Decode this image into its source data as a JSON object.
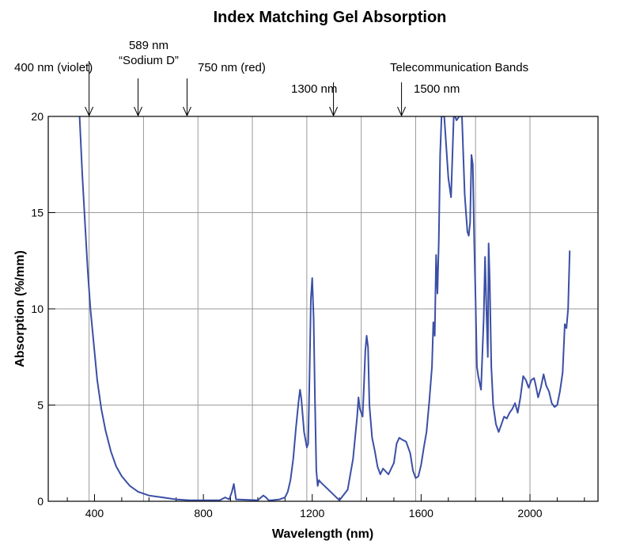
{
  "chart_data": {
    "type": "line",
    "title": "Index Matching Gel Absorption",
    "xlabel": "Wavelength (nm)",
    "ylabel": "Absorption (%/mm)",
    "xlim": [
      230,
      2250
    ],
    "ylim": [
      0,
      20
    ],
    "x_ticks": [
      400,
      800,
      1200,
      1600,
      2000
    ],
    "x_minor_ticks": [
      300,
      500,
      600,
      700,
      900,
      1000,
      1100,
      1300,
      1400,
      1500,
      1700,
      1800,
      1900,
      2100,
      2200
    ],
    "y_ticks": [
      0,
      5,
      10,
      15,
      20
    ],
    "x_grid": [
      380,
      580,
      780,
      980,
      1180,
      1380,
      1580,
      1800,
      2000
    ],
    "y_grid": [
      5,
      10,
      15
    ],
    "series": [
      {
        "name": "Index Matching Gel",
        "color": "#3b4fa5",
        "x": [
          345,
          355,
          365,
          375,
          385,
          395,
          410,
          425,
          440,
          460,
          480,
          500,
          530,
          560,
          600,
          650,
          700,
          750,
          860,
          880,
          895,
          905,
          912,
          920,
          1000,
          1020,
          1030,
          1040,
          1050,
          1080,
          1100,
          1110,
          1120,
          1130,
          1140,
          1150,
          1155,
          1160,
          1170,
          1180,
          1185,
          1190,
          1195,
          1200,
          1205,
          1210,
          1215,
          1220,
          1225,
          1230,
          1300,
          1330,
          1350,
          1365,
          1370,
          1375,
          1380,
          1385,
          1390,
          1395,
          1400,
          1405,
          1410,
          1420,
          1430,
          1440,
          1450,
          1460,
          1480,
          1500,
          1510,
          1520,
          1530,
          1545,
          1560,
          1570,
          1580,
          1590,
          1600,
          1610,
          1620,
          1630,
          1640,
          1645,
          1650,
          1655,
          1660,
          1665,
          1670,
          1675,
          1685,
          1700,
          1710,
          1720,
          1725,
          1730,
          1740,
          1750,
          1760,
          1765,
          1770,
          1775,
          1780,
          1785,
          1790,
          1795,
          1800,
          1805,
          1810,
          1820,
          1830,
          1835,
          1840,
          1845,
          1848,
          1852,
          1858,
          1865,
          1875,
          1885,
          1895,
          1905,
          1915,
          1925,
          1935,
          1945,
          1955,
          1965,
          1975,
          1985,
          1995,
          2005,
          2015,
          2020,
          2030,
          2040,
          2050,
          2060,
          2070,
          2080,
          2090,
          2100,
          2110,
          2115,
          2120,
          2128,
          2134,
          2140,
          2146
        ],
        "y": [
          20,
          17,
          14.5,
          12,
          10,
          8.5,
          6.3,
          4.8,
          3.7,
          2.6,
          1.8,
          1.3,
          0.8,
          0.5,
          0.3,
          0.2,
          0.1,
          0.05,
          0.05,
          0.2,
          0.1,
          0.5,
          0.9,
          0.1,
          0.05,
          0.3,
          0.2,
          0.05,
          0.05,
          0.1,
          0.2,
          0.5,
          1.1,
          2.2,
          3.8,
          5.2,
          5.8,
          5.3,
          3.6,
          2.8,
          3.0,
          6.5,
          10.5,
          11.6,
          9.5,
          5.2,
          1.6,
          0.8,
          1.1,
          1.0,
          0.05,
          0.6,
          2.2,
          4.4,
          5.4,
          4.8,
          4.6,
          4.4,
          6.0,
          7.8,
          8.6,
          8.0,
          5.0,
          3.3,
          2.6,
          1.8,
          1.4,
          1.7,
          1.4,
          2.0,
          3.0,
          3.3,
          3.2,
          3.1,
          2.5,
          1.6,
          1.2,
          1.3,
          1.9,
          2.8,
          3.6,
          5.2,
          7.0,
          9.3,
          8.6,
          12.8,
          10.8,
          13.5,
          18.0,
          20,
          20,
          16.8,
          15.8,
          20,
          20,
          19.8,
          20,
          20,
          16.0,
          15.0,
          14.0,
          13.8,
          14.5,
          18.0,
          17.5,
          13.5,
          10.5,
          7.0,
          6.5,
          5.8,
          9.5,
          12.7,
          10.0,
          7.5,
          13.4,
          11.5,
          7.0,
          5.0,
          4.0,
          3.6,
          4.0,
          4.4,
          4.3,
          4.6,
          4.8,
          5.1,
          4.6,
          5.4,
          6.5,
          6.3,
          5.9,
          6.3,
          6.4,
          6.1,
          5.4,
          5.9,
          6.6,
          6.0,
          5.7,
          5.1,
          4.9,
          5.0,
          5.7,
          6.2,
          6.7,
          9.2,
          9.0,
          10.0,
          13.0
        ]
      }
    ],
    "annotations": [
      {
        "lines": [
          "400 nm (violet)"
        ],
        "arrow_x": 380
      },
      {
        "lines": [
          "589 nm",
          "“Sodium D”"
        ],
        "arrow_x": 560
      },
      {
        "lines": [
          "750 nm (red)"
        ],
        "arrow_x": 740
      },
      {
        "lines": [
          "1300 nm"
        ],
        "arrow_x": 1278
      },
      {
        "lines": [
          "Telecommunication Bands"
        ],
        "arrow_x": null
      },
      {
        "lines": [
          "1500 nm"
        ],
        "arrow_x": 1528
      }
    ]
  }
}
